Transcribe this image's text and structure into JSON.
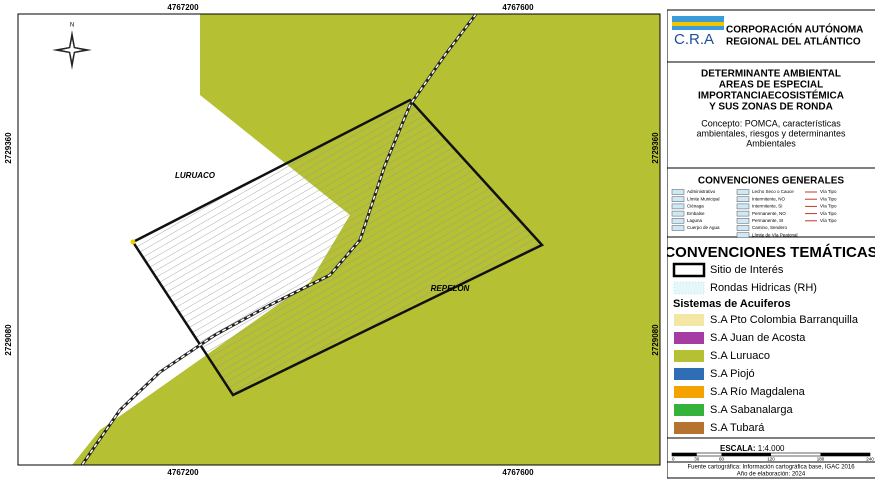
{
  "map": {
    "coords_x": [
      "4767200",
      "4767600"
    ],
    "coords_y": [
      "2729360",
      "2729080"
    ],
    "places": [
      "LURUACO",
      "REPELON"
    ],
    "compass": "N"
  },
  "header": {
    "acronym": "C.R.A",
    "org": [
      "CORPORACIÓN AUTÓNOMA",
      "REGIONAL DEL ATLÁNTICO"
    ]
  },
  "title": {
    "lines": [
      "DETERMINANTE AMBIENTAL",
      "AREAS DE ESPECIAL",
      "IMPORTANCIAECOSISTÉMICA",
      "Y SUS ZONAS DE RONDA"
    ],
    "concept": [
      "Concepto: POMCA, características",
      "ambientales, riesgos y determinantes",
      "Ambientales"
    ]
  },
  "general": {
    "title": "CONVENCIONES GENERALES",
    "columns": [
      [
        "Administrativo",
        "Límite Municipal",
        "Ciénaga",
        "Embalse",
        "Laguna",
        "Cuerpo de Agua"
      ],
      [
        "Lecho Seco o Cauce",
        "Intermitente, NO",
        "Intermitente, SI",
        "Permanente, NO",
        "Permanente, SI",
        "Camino, Sendero",
        "Límite de Vía Peatonal"
      ],
      [
        "Vía Tipo",
        "Vía Tipo",
        "Vía Tipo",
        "Vía Tipo",
        "Vía Tipo"
      ]
    ]
  },
  "thematic": {
    "title": "CONVENCIONES TEMÁTICAS",
    "items": [
      "Sitio de Interés",
      "Rondas Hidricas (RH)"
    ],
    "subtitle": "Sistemas de Acuiferos",
    "aquifers": [
      {
        "label": "S.A  Pto Colombia Barranquilla",
        "color": "#f3e7a6"
      },
      {
        "label": "S.A Juan de  Acosta",
        "color": "#a53ca4"
      },
      {
        "label": "S.A Luruaco",
        "color": "#b5c033"
      },
      {
        "label": "S.A Piojó",
        "color": "#2f6db5"
      },
      {
        "label": "S.A Río Magdalena",
        "color": "#f5a200"
      },
      {
        "label": "S.A Sabanalarga",
        "color": "#34b23a"
      },
      {
        "label": "S.A Tubará",
        "color": "#b5732f"
      }
    ]
  },
  "scale": {
    "title": "ESCALA:",
    "ratio": "1:4.000",
    "ticks": [
      "0",
      "30",
      "60",
      "120",
      "180",
      "240"
    ]
  },
  "source": [
    "Fuente cartográfica: Información cartográfica base, IGAC 2016",
    "Año de elaboración: 2024"
  ]
}
